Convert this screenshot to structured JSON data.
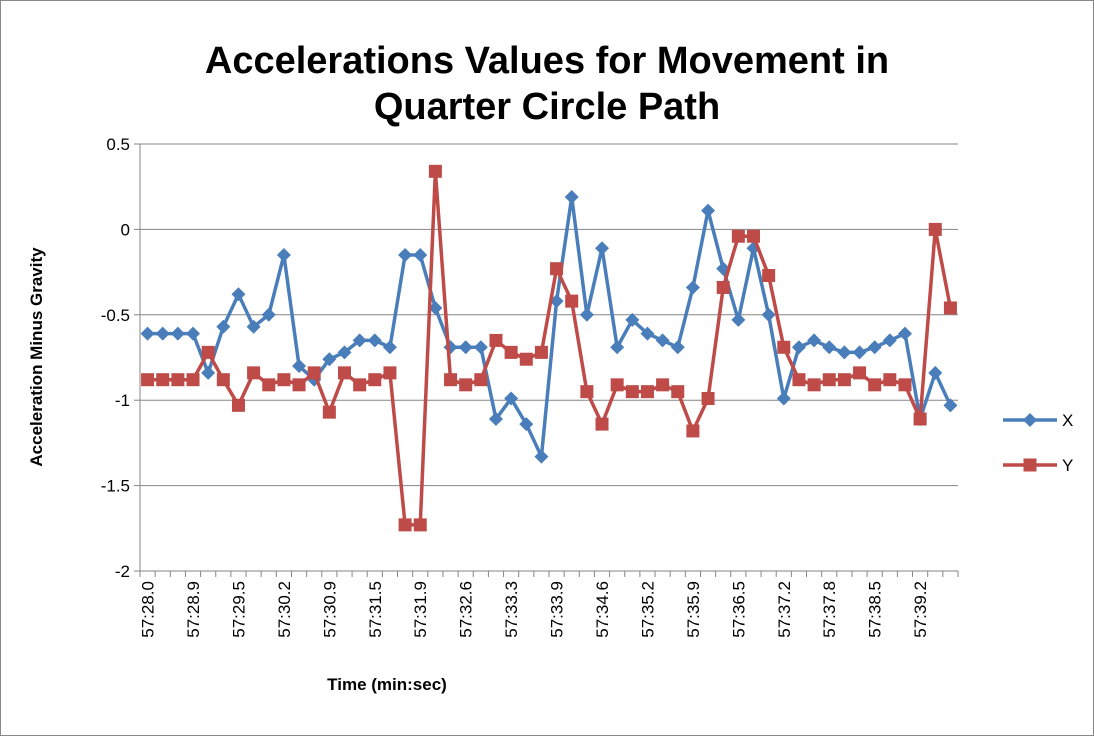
{
  "chart_data": {
    "type": "line",
    "title": "Accelerations Values for Movement in Quarter Circle Path",
    "x_label": "Time (min:sec)",
    "y_label": "Acceleration Minus Gravity",
    "categories": [
      "57:28.0",
      null,
      null,
      "57:28.9",
      null,
      null,
      "57:29.5",
      null,
      null,
      "57:30.2",
      null,
      null,
      "57:30.9",
      null,
      null,
      "57:31.5",
      null,
      null,
      "57:31.9",
      null,
      null,
      "57:32.6",
      null,
      null,
      "57:33.3",
      null,
      null,
      "57:33.9",
      null,
      null,
      "57:34.6",
      null,
      null,
      "57:35.2",
      null,
      null,
      "57:35.9",
      null,
      null,
      "57:36.5",
      null,
      null,
      "57:37.2",
      null,
      null,
      "57:37.8",
      null,
      null,
      "57:38.5",
      null,
      null,
      "57:39.2",
      null,
      null
    ],
    "series": [
      {
        "name": "X",
        "color": "#4a7ebb",
        "marker": "diamond",
        "values": [
          -0.61,
          -0.61,
          -0.61,
          -0.61,
          -0.84,
          -0.57,
          -0.38,
          -0.57,
          -0.5,
          -0.15,
          -0.8,
          -0.88,
          -0.76,
          -0.72,
          -0.65,
          -0.65,
          -0.69,
          -0.15,
          -0.15,
          -0.46,
          -0.69,
          -0.69,
          -0.69,
          -1.11,
          -0.99,
          -1.14,
          -1.33,
          -0.42,
          0.19,
          -0.5,
          -0.11,
          -0.69,
          -0.53,
          -0.61,
          -0.65,
          -0.69,
          -0.34,
          0.11,
          -0.23,
          -0.53,
          -0.11,
          -0.5,
          -0.99,
          -0.69,
          -0.65,
          -0.69,
          -0.72,
          -0.72,
          -0.69,
          -0.65,
          -0.61,
          -1.11,
          -0.84,
          -1.03
        ]
      },
      {
        "name": "Y",
        "color": "#be4b48",
        "marker": "square",
        "values": [
          -0.88,
          -0.88,
          -0.88,
          -0.88,
          -0.72,
          -0.88,
          -1.03,
          -0.84,
          -0.91,
          -0.88,
          -0.91,
          -0.84,
          -1.07,
          -0.84,
          -0.91,
          -0.88,
          -0.84,
          -1.73,
          -1.73,
          0.34,
          -0.88,
          -0.91,
          -0.88,
          -0.65,
          -0.72,
          -0.76,
          -0.72,
          -0.23,
          -0.42,
          -0.95,
          -1.14,
          -0.91,
          -0.95,
          -0.95,
          -0.91,
          -0.95,
          -1.18,
          -0.99,
          -0.34,
          -0.04,
          -0.04,
          -0.27,
          -0.69,
          -0.88,
          -0.91,
          -0.88,
          -0.88,
          -0.84,
          -0.91,
          -0.88,
          -0.91,
          -1.11,
          0.0,
          -0.46
        ]
      }
    ],
    "ylim": [
      -2,
      0.5
    ],
    "yticks": [
      -2,
      -1.5,
      -1,
      -0.5,
      0,
      0.5
    ],
    "grid": true,
    "legend": "right"
  }
}
